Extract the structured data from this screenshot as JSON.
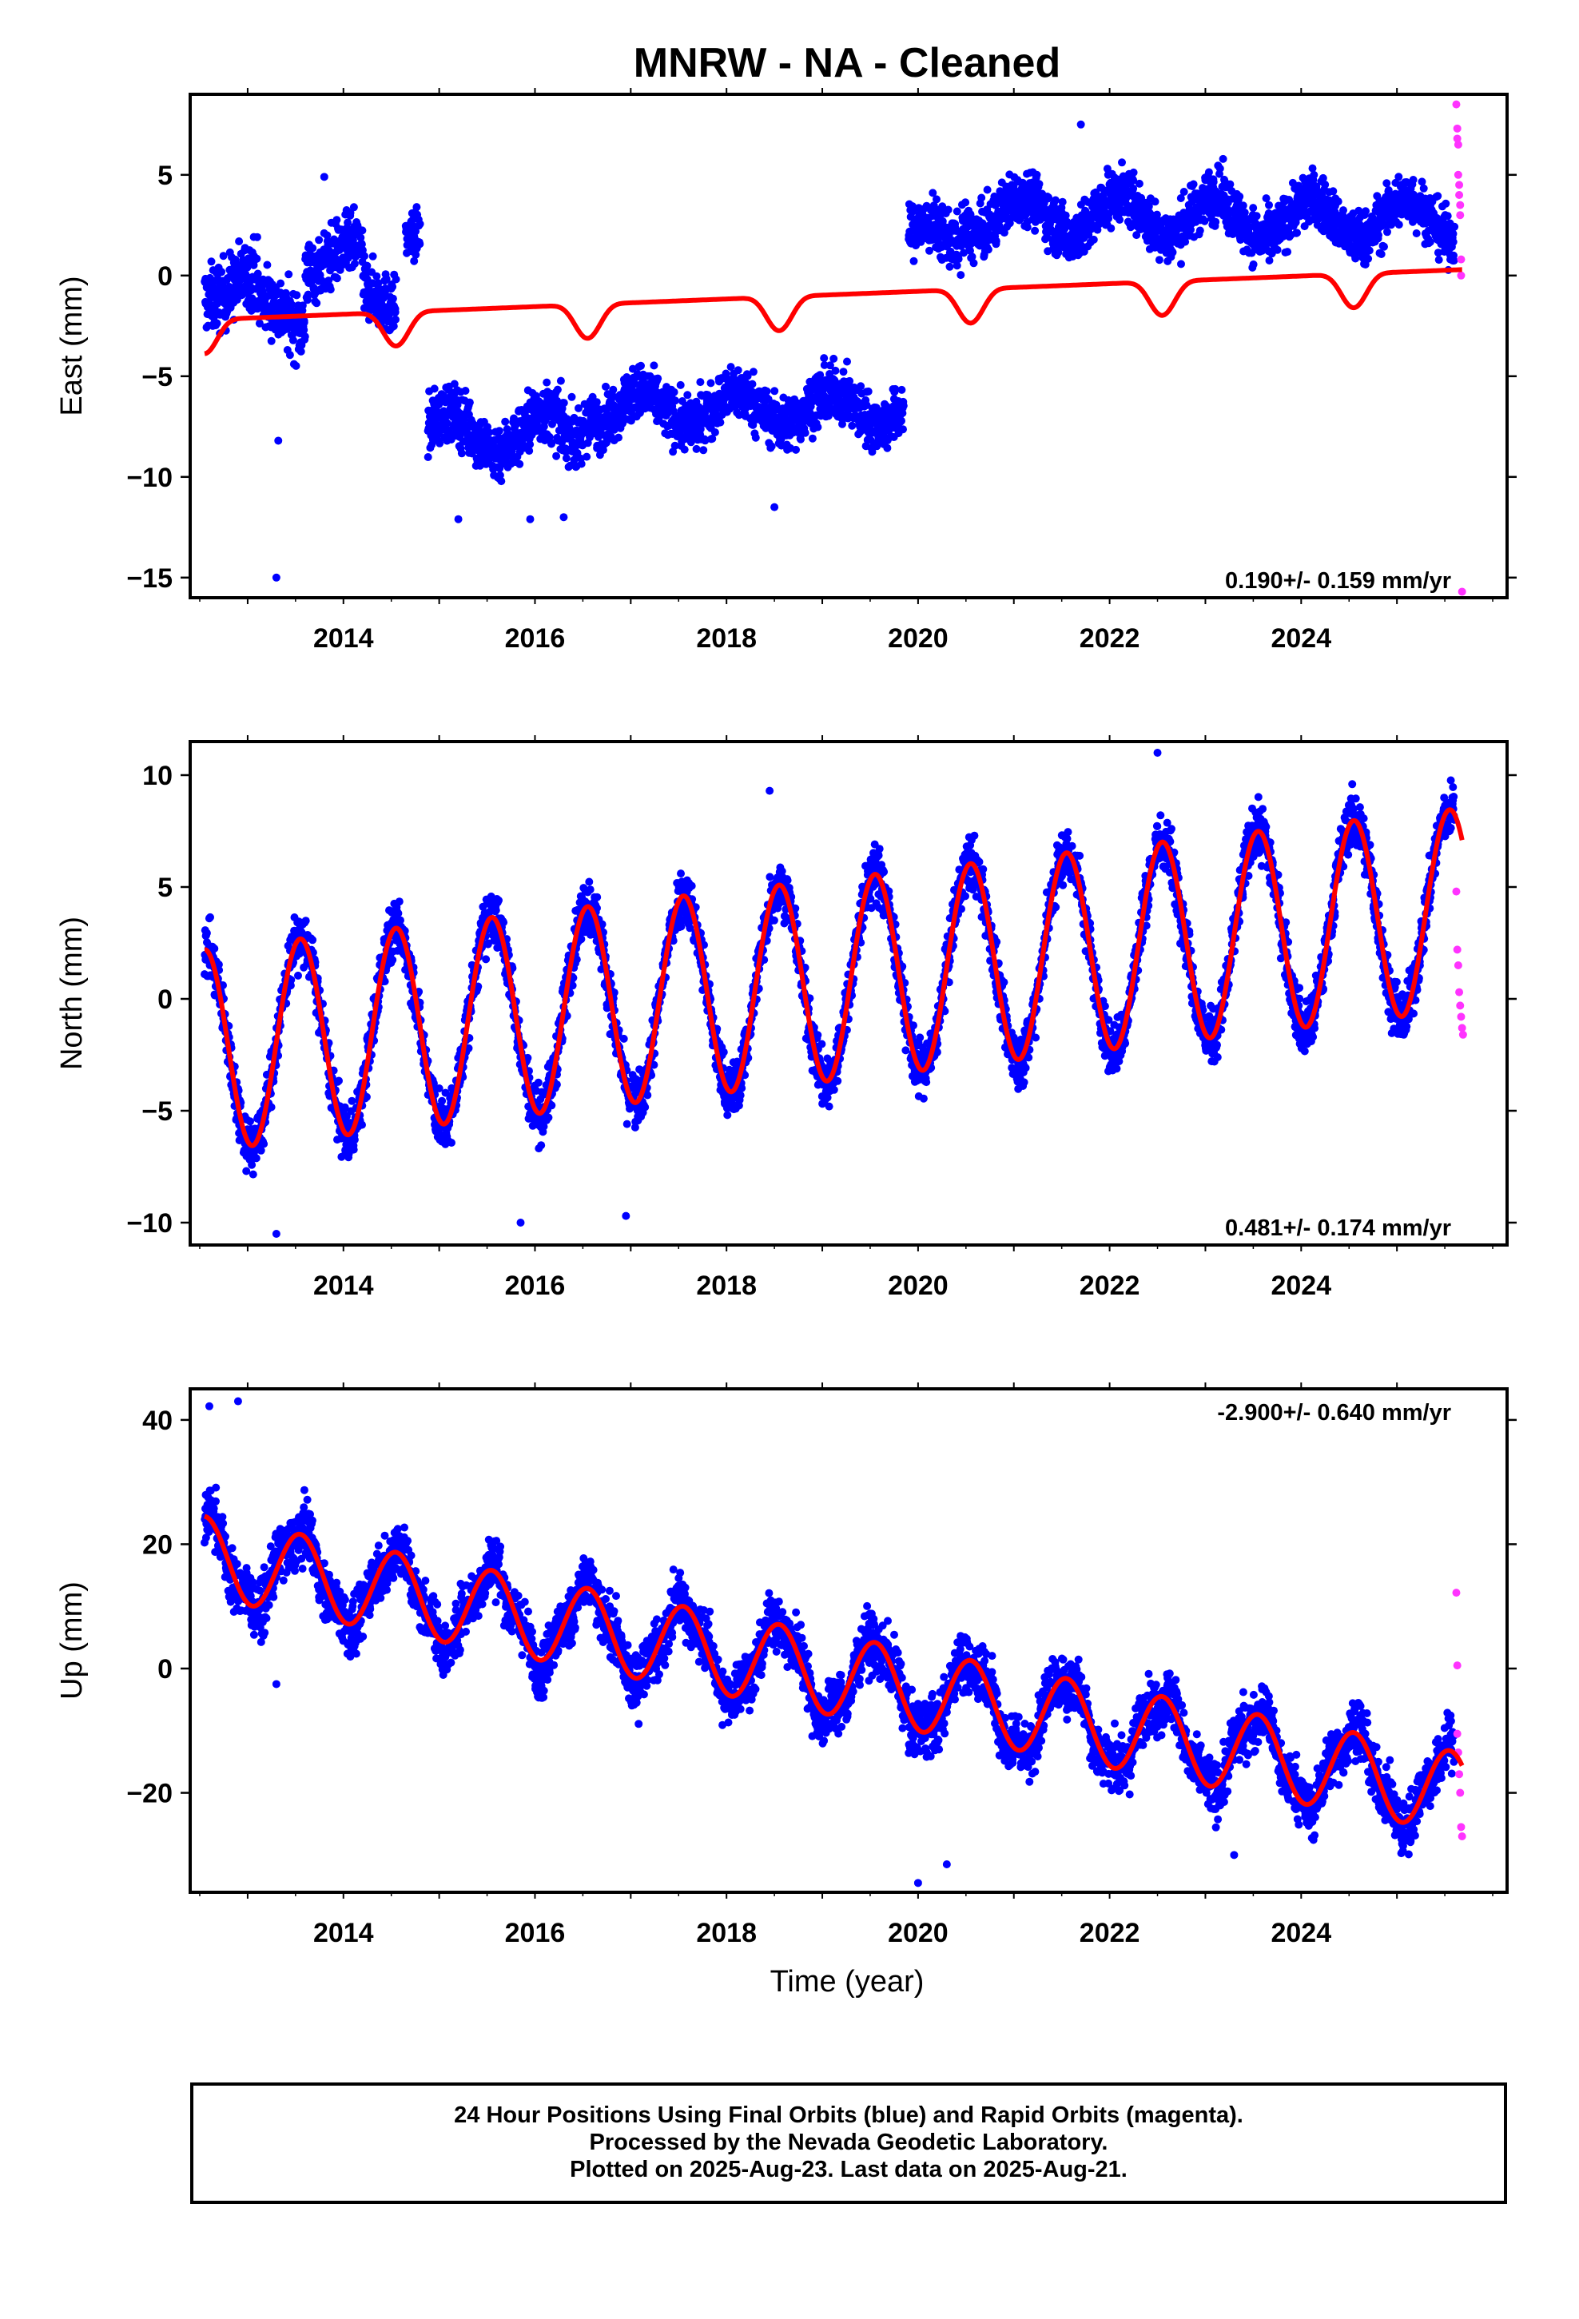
{
  "title": "MNRW  - NA - Cleaned",
  "xlabel": "Time (year)",
  "footer": {
    "line1": "24 Hour Positions Using Final Orbits (blue) and Rapid Orbits (magenta).",
    "line2": "Processed by the Nevada Geodetic Laboratory.",
    "line3": "Plotted on 2025-Aug-23. Last data on 2025-Aug-21."
  },
  "colors": {
    "final": "#0000ff",
    "rapid": "#ff33ff",
    "model": "#ff0000"
  },
  "chart_data": [
    {
      "type": "scatter",
      "component": "east",
      "ylabel": "East (mm)",
      "rate_label": "0.190+/- 0.159 mm/yr",
      "rate_position": "bottom-right",
      "xlim": [
        2012.4,
        2026.15
      ],
      "ylim": [
        -16,
        9
      ],
      "xticks": [
        2014,
        2016,
        2018,
        2020,
        2022,
        2024
      ],
      "yticks": [
        -15,
        -10,
        -5,
        0,
        5
      ],
      "final_series": {
        "name": "Final Orbits",
        "segments": [
          {
            "x": [
              2012.55,
              2013.1
            ],
            "level": -0.5,
            "spread": 1.5,
            "season": 0.7
          },
          {
            "x": [
              2013.1,
              2013.6
            ],
            "level": -1.8,
            "spread": 1.5,
            "season": 0.7
          },
          {
            "x": [
              2013.6,
              2014.2
            ],
            "level": 0.8,
            "spread": 1.4,
            "season": 0.7
          },
          {
            "x": [
              2014.2,
              2014.55
            ],
            "level": -1.0,
            "spread": 1.3,
            "season": 0.6
          },
          {
            "x": [
              2014.65,
              2014.8
            ],
            "level": 2.2,
            "spread": 1.0,
            "season": 0.3
          },
          {
            "x": [
              2014.88,
              2016.5
            ],
            "level": -7.8,
            "spread": 1.3,
            "season": 1.0
          },
          {
            "x": [
              2016.5,
              2019.85
            ],
            "level": -6.6,
            "spread": 1.2,
            "season": 0.8
          },
          {
            "x": [
              2019.9,
              2020.45
            ],
            "level": 1.8,
            "spread": 1.2,
            "season": 0.7
          },
          {
            "x": [
              2020.45,
              2023.2
            ],
            "level": 3.0,
            "spread": 1.2,
            "season": 1.0
          },
          {
            "x": [
              2023.2,
              2025.6
            ],
            "level": 2.8,
            "spread": 1.2,
            "season": 1.0
          }
        ],
        "outliers": [
          [
            2013.3,
            -15
          ],
          [
            2013.32,
            -8.2
          ],
          [
            2013.8,
            4.9
          ],
          [
            2015.2,
            -12.1
          ],
          [
            2015.95,
            -12.1
          ],
          [
            2016.3,
            -12.0
          ],
          [
            2018.5,
            -11.5
          ],
          [
            2021.7,
            7.5
          ]
        ]
      },
      "rapid_series": {
        "name": "Rapid Orbits",
        "x": [
          2025.62,
          2025.63,
          2025.63,
          2025.64,
          2025.64,
          2025.65,
          2025.65,
          2025.66,
          2025.66,
          2025.67,
          2025.67,
          2025.68
        ],
        "y": [
          8.5,
          7.3,
          6.8,
          6.5,
          5.0,
          4.5,
          4.0,
          3.5,
          3.0,
          0.8,
          0.0,
          -15.7
        ]
      },
      "model": {
        "offset": -2.2,
        "rate": 0.19,
        "t0": 2012.55,
        "amp": 1.05,
        "phase": 0.3,
        "jumps": [
          [
            2014.9,
            0.3
          ],
          [
            2019.88,
            0.05
          ]
        ]
      }
    },
    {
      "type": "scatter",
      "component": "north",
      "ylabel": "North (mm)",
      "rate_label": "0.481+/- 0.174 mm/yr",
      "rate_position": "bottom-right",
      "xlim": [
        2012.4,
        2026.15
      ],
      "ylim": [
        -11,
        11.5
      ],
      "xticks": [
        2014,
        2016,
        2018,
        2020,
        2022,
        2024
      ],
      "yticks": [
        -10,
        -5,
        0,
        5,
        10
      ],
      "final_series": {
        "name": "Final Orbits",
        "segments": [
          {
            "x": [
              2012.55,
              2025.6
            ],
            "level": 0.0,
            "spread": 1.1,
            "season": 4.5
          }
        ],
        "outliers": [
          [
            2013.3,
            -10.5
          ],
          [
            2015.85,
            -10.0
          ],
          [
            2016.95,
            -9.7
          ],
          [
            2022.5,
            11.0
          ],
          [
            2018.45,
            9.3
          ]
        ]
      },
      "rapid_series": {
        "name": "Rapid Orbits",
        "x": [
          2025.62,
          2025.63,
          2025.64,
          2025.65,
          2025.66,
          2025.67,
          2025.68,
          2025.69
        ],
        "y": [
          4.8,
          2.2,
          1.5,
          0.3,
          -0.3,
          -0.8,
          -1.3,
          -1.6
        ]
      },
      "model": {
        "offset": -2.3,
        "rate": 0.481,
        "t0": 2012.55,
        "amp": 4.5,
        "phase": 0.3,
        "jumps": []
      }
    },
    {
      "type": "scatter",
      "component": "up",
      "ylabel": "Up (mm)",
      "rate_label": "-2.900+/- 0.640 mm/yr",
      "rate_position": "top-right",
      "xlim": [
        2012.4,
        2026.15
      ],
      "ylim": [
        -36,
        45
      ],
      "xticks": [
        2014,
        2016,
        2018,
        2020,
        2022,
        2024
      ],
      "yticks": [
        -20,
        0,
        20,
        40
      ],
      "final_series": {
        "name": "Final Orbits",
        "segments": [
          {
            "x": [
              2012.55,
              2025.6
            ],
            "level": 0.0,
            "spread": 4.0,
            "season": 6.5
          }
        ],
        "outliers": [
          [
            2012.6,
            42.2
          ],
          [
            2012.9,
            43.0
          ],
          [
            2013.3,
            -2.5
          ],
          [
            2020.0,
            -34.5
          ],
          [
            2020.3,
            -31.5
          ],
          [
            2023.3,
            -30.0
          ]
        ]
      },
      "rapid_series": {
        "name": "Rapid Orbits",
        "x": [
          2025.62,
          2025.63,
          2025.63,
          2025.64,
          2025.65,
          2025.66,
          2025.67,
          2025.68
        ],
        "y": [
          12.2,
          0.5,
          -10.5,
          -13.5,
          -17.0,
          -20.0,
          -25.5,
          -27.0
        ]
      },
      "model": {
        "offset": 18.0,
        "rate": -2.9,
        "t0": 2012.55,
        "amp": 6.5,
        "phase": 0.3,
        "jumps": []
      }
    }
  ]
}
